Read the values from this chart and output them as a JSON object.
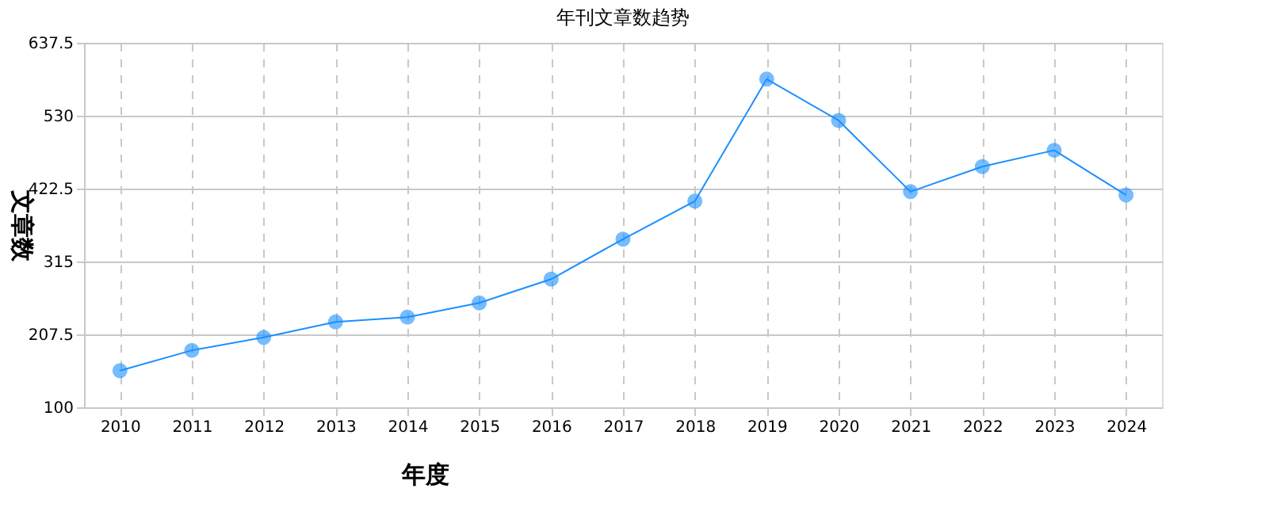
{
  "chart_data": {
    "type": "line",
    "title": "年刊文章数趋势",
    "xlabel": "年度",
    "ylabel": "文章数",
    "categories": [
      "2010",
      "2011",
      "2012",
      "2013",
      "2014",
      "2015",
      "2016",
      "2017",
      "2018",
      "2019",
      "2020",
      "2021",
      "2022",
      "2023",
      "2024"
    ],
    "series": [
      {
        "color": "#1a90ff",
        "values": [
          154,
          184,
          203,
          226,
          233,
          254,
          289,
          348,
          404,
          584,
          523,
          418,
          455,
          479,
          413
        ]
      }
    ],
    "ylim": [
      100,
      637.5
    ],
    "yticks": [
      100,
      207.5,
      315,
      422.5,
      530,
      637.5
    ],
    "grid": true,
    "marker": "circle",
    "line_style": "solid"
  }
}
